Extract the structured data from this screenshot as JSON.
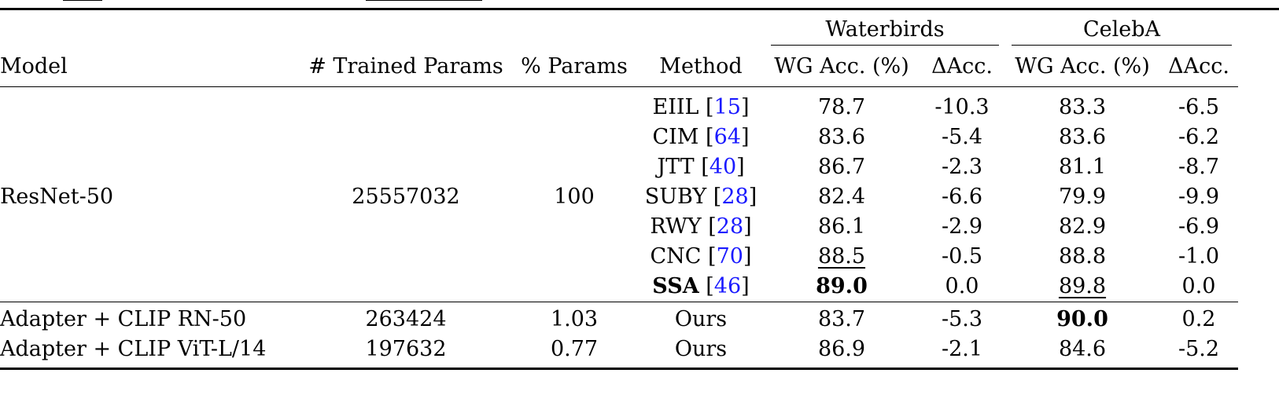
{
  "table": {
    "group_headers": [
      "Waterbirds",
      "CelebA"
    ],
    "headers": [
      "Model",
      "# Trained Params",
      "% Params",
      "Method",
      "WG Acc. (%)",
      "ΔAcc.",
      "WG Acc. (%)",
      "ΔAcc."
    ],
    "resnet": {
      "model": "ResNet-50",
      "trained_params": "25557032",
      "pct_params": "100",
      "rows": [
        {
          "method": "EIIL",
          "cite": "15",
          "wb_acc": "78.7",
          "wb_delta": "-10.3",
          "ca_acc": "83.3",
          "ca_delta": "-6.5"
        },
        {
          "method": "CIM",
          "cite": "64",
          "wb_acc": "83.6",
          "wb_delta": "-5.4",
          "ca_acc": "83.6",
          "ca_delta": "-6.2"
        },
        {
          "method": "JTT",
          "cite": "40",
          "wb_acc": "86.7",
          "wb_delta": "-2.3",
          "ca_acc": "81.1",
          "ca_delta": "-8.7"
        },
        {
          "method": "SUBY",
          "cite": "28",
          "wb_acc": "82.4",
          "wb_delta": "-6.6",
          "ca_acc": "79.9",
          "ca_delta": "-9.9"
        },
        {
          "method": "RWY",
          "cite": "28",
          "wb_acc": "86.1",
          "wb_delta": "-2.9",
          "ca_acc": "82.9",
          "ca_delta": "-6.9"
        },
        {
          "method": "CNC",
          "cite": "70",
          "wb_acc": "88.5",
          "wb_delta": "-0.5",
          "ca_acc": "88.8",
          "ca_delta": "-1.0"
        },
        {
          "method": "SSA",
          "cite": "46",
          "wb_acc": "89.0",
          "wb_delta": "0.0",
          "ca_acc": "89.8",
          "ca_delta": "0.0"
        }
      ]
    },
    "ours": [
      {
        "model": "Adapter + CLIP RN-50",
        "trained_params": "263424",
        "pct_params": "1.03",
        "method": "Ours",
        "wb_acc": "83.7",
        "wb_delta": "-5.3",
        "ca_acc": "90.0",
        "ca_delta": "0.2"
      },
      {
        "model": "Adapter + CLIP ViT-L/14",
        "trained_params": "197632",
        "pct_params": "0.77",
        "method": "Ours",
        "wb_acc": "86.9",
        "wb_delta": "-2.1",
        "ca_acc": "84.6",
        "ca_delta": "-5.2"
      }
    ]
  }
}
